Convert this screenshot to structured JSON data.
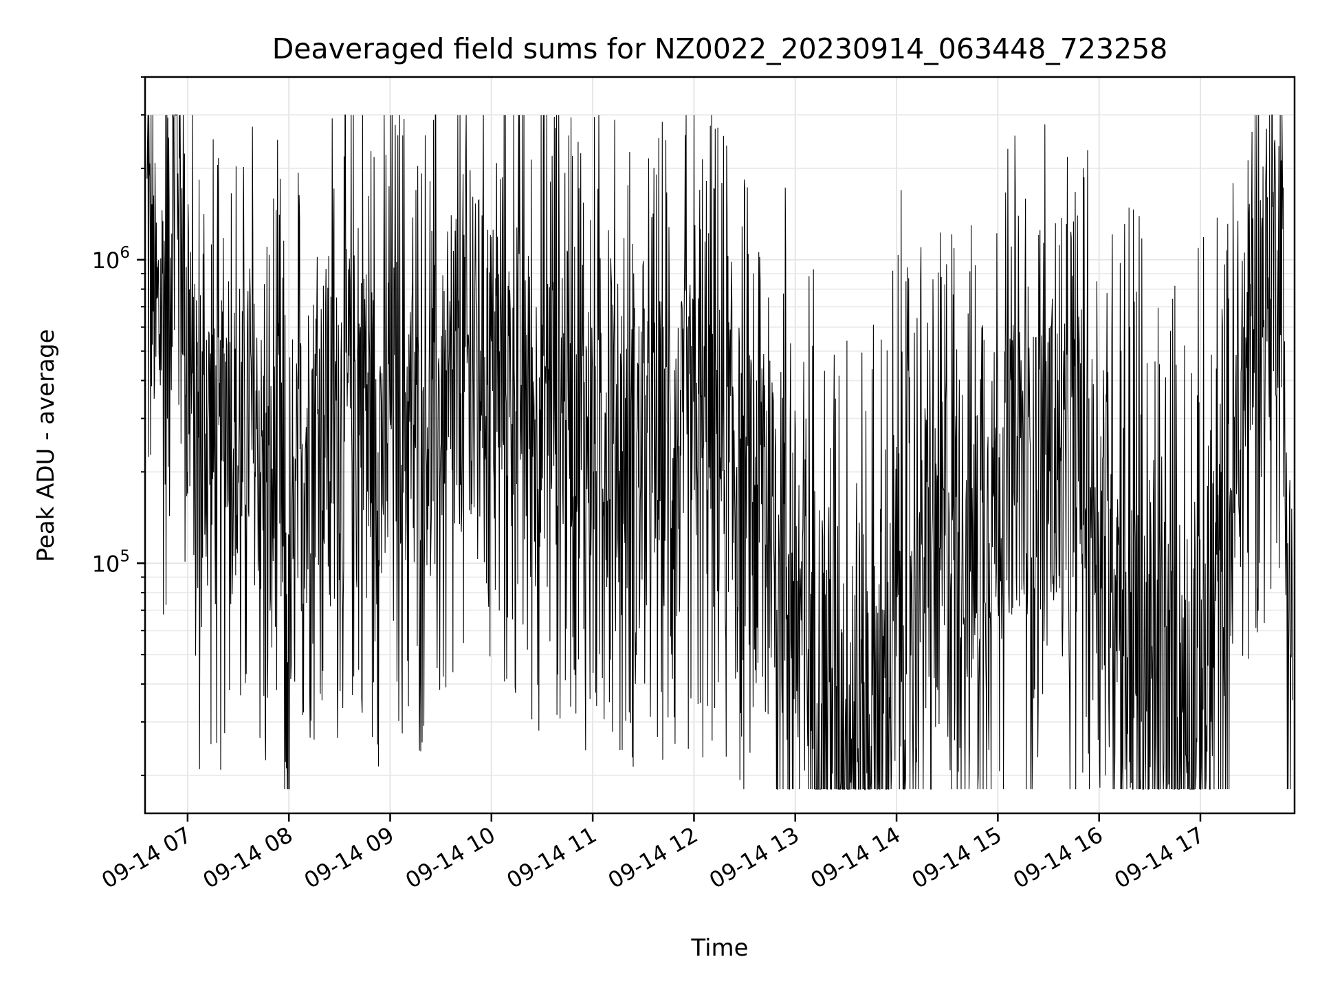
{
  "chart_data": {
    "type": "line",
    "title": "Deaveraged field sums for NZ0022_20230914_063448_723258",
    "xlabel": "Time",
    "ylabel": "Peak ADU - average",
    "x_ticks": [
      "09-14 07",
      "09-14 08",
      "09-14 09",
      "09-14 10",
      "09-14 11",
      "09-14 12",
      "09-14 13",
      "09-14 14",
      "09-14 15",
      "09-14 16",
      "09-14 17"
    ],
    "x_tick_hours": [
      7,
      8,
      9,
      10,
      11,
      12,
      13,
      14,
      15,
      16,
      17
    ],
    "xlim_hours": [
      6.58,
      17.93
    ],
    "y_scale": "log",
    "ylim": [
      15000,
      4000000
    ],
    "y_ticks": [
      {
        "exponent": 5,
        "value": 100000
      },
      {
        "exponent": 6,
        "value": 1000000
      }
    ],
    "grid": true,
    "line_color": "#000000",
    "series": [
      {
        "name": "",
        "points_sampled_every_6_min": [
          [
            6.6,
            1300000
          ],
          [
            6.7,
            600000
          ],
          [
            6.8,
            900000
          ],
          [
            6.9,
            2900000
          ],
          [
            7.0,
            500000
          ],
          [
            7.1,
            220000
          ],
          [
            7.2,
            300000
          ],
          [
            7.3,
            180000
          ],
          [
            7.4,
            400000
          ],
          [
            7.5,
            210000
          ],
          [
            7.6,
            280000
          ],
          [
            7.7,
            250000
          ],
          [
            7.8,
            140000
          ],
          [
            7.9,
            220000
          ],
          [
            8.0,
            45000
          ],
          [
            8.1,
            200000
          ],
          [
            8.2,
            280000
          ],
          [
            8.3,
            300000
          ],
          [
            8.4,
            350000
          ],
          [
            8.5,
            260000
          ],
          [
            8.6,
            350000
          ],
          [
            8.7,
            420000
          ],
          [
            8.8,
            300000
          ],
          [
            8.9,
            260000
          ],
          [
            9.0,
            380000
          ],
          [
            9.1,
            320000
          ],
          [
            9.2,
            280000
          ],
          [
            9.3,
            250000
          ],
          [
            9.4,
            330000
          ],
          [
            9.5,
            300000
          ],
          [
            9.6,
            260000
          ],
          [
            9.7,
            380000
          ],
          [
            9.8,
            450000
          ],
          [
            9.9,
            600000
          ],
          [
            10.0,
            480000
          ],
          [
            10.1,
            350000
          ],
          [
            10.2,
            420000
          ],
          [
            10.3,
            380000
          ],
          [
            10.4,
            300000
          ],
          [
            10.5,
            350000
          ],
          [
            10.6,
            400000
          ],
          [
            10.7,
            330000
          ],
          [
            10.8,
            380000
          ],
          [
            10.9,
            300000
          ],
          [
            11.0,
            250000
          ],
          [
            11.1,
            300000
          ],
          [
            11.2,
            260000
          ],
          [
            11.3,
            200000
          ],
          [
            11.4,
            250000
          ],
          [
            11.5,
            230000
          ],
          [
            11.6,
            200000
          ],
          [
            11.7,
            280000
          ],
          [
            11.8,
            220000
          ],
          [
            11.9,
            250000
          ],
          [
            12.0,
            300000
          ],
          [
            12.1,
            240000
          ],
          [
            12.2,
            280000
          ],
          [
            12.3,
            250000
          ],
          [
            12.4,
            230000
          ],
          [
            12.5,
            180000
          ],
          [
            12.6,
            150000
          ],
          [
            12.7,
            200000
          ],
          [
            12.8,
            120000
          ],
          [
            12.9,
            100000
          ],
          [
            13.0,
            80000
          ],
          [
            13.1,
            60000
          ],
          [
            13.2,
            50000
          ],
          [
            13.3,
            40000
          ],
          [
            13.4,
            35000
          ],
          [
            13.5,
            30000
          ],
          [
            13.6,
            28000
          ],
          [
            13.7,
            30000
          ],
          [
            13.8,
            32000
          ],
          [
            13.9,
            35000
          ],
          [
            14.0,
            60000
          ],
          [
            14.1,
            80000
          ],
          [
            14.2,
            90000
          ],
          [
            14.3,
            120000
          ],
          [
            14.4,
            100000
          ],
          [
            14.5,
            130000
          ],
          [
            14.6,
            150000
          ],
          [
            14.7,
            120000
          ],
          [
            14.8,
            110000
          ],
          [
            14.9,
            150000
          ],
          [
            15.0,
            180000
          ],
          [
            15.1,
            200000
          ],
          [
            15.2,
            220000
          ],
          [
            15.3,
            180000
          ],
          [
            15.4,
            200000
          ],
          [
            15.5,
            250000
          ],
          [
            15.6,
            200000
          ],
          [
            15.7,
            170000
          ],
          [
            15.8,
            220000
          ],
          [
            15.9,
            180000
          ],
          [
            16.0,
            150000
          ],
          [
            16.1,
            120000
          ],
          [
            16.2,
            100000
          ],
          [
            16.3,
            70000
          ],
          [
            16.4,
            50000
          ],
          [
            16.5,
            40000
          ],
          [
            16.6,
            35000
          ],
          [
            16.7,
            32000
          ],
          [
            16.8,
            35000
          ],
          [
            16.9,
            30000
          ],
          [
            17.0,
            40000
          ],
          [
            17.1,
            60000
          ],
          [
            17.2,
            80000
          ],
          [
            17.3,
            150000
          ],
          [
            17.4,
            300000
          ],
          [
            17.5,
            600000
          ],
          [
            17.6,
            700000
          ],
          [
            17.7,
            900000
          ],
          [
            17.8,
            1200000
          ],
          [
            17.85,
            120000
          ],
          [
            17.93,
            40000
          ]
        ]
      }
    ]
  }
}
